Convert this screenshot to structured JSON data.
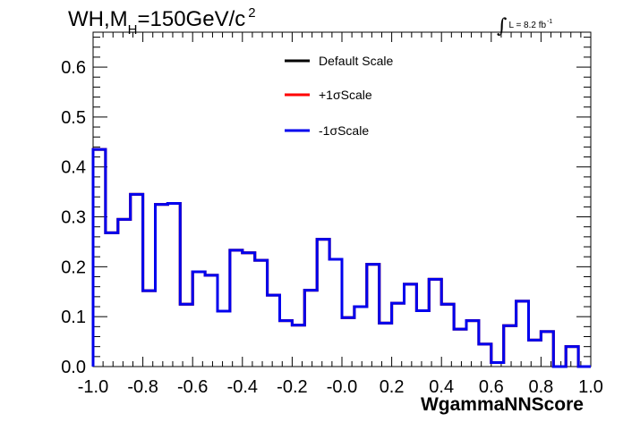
{
  "chart_data": {
    "type": "line",
    "title": {
      "main": "WH,M",
      "subscript": "H",
      "rest": "=150GeV/c",
      "superscript": "2"
    },
    "luminosity": {
      "symbol": "∫",
      "text": "L = 8.2 fb",
      "superscript": "-1"
    },
    "xlabel": "WgammaNNScore",
    "ylabel": "",
    "xlim": [
      -1.0,
      1.0
    ],
    "ylim": [
      0.0,
      0.67
    ],
    "x_ticks": [
      -1.0,
      -0.8,
      -0.6,
      -0.4,
      -0.2,
      0.0,
      0.2,
      0.4,
      0.6,
      0.8,
      1.0
    ],
    "x_tick_labels": [
      "-1.0",
      "-0.8",
      "-0.6",
      "-0.4",
      "-0.2",
      "-0.0",
      "0.2",
      "0.4",
      "0.6",
      "0.8",
      "1.0"
    ],
    "y_ticks": [
      0.0,
      0.1,
      0.2,
      0.3,
      0.4,
      0.5,
      0.6
    ],
    "y_tick_labels": [
      "0.0",
      "0.1",
      "0.2",
      "0.3",
      "0.4",
      "0.5",
      "0.6"
    ],
    "grid": false,
    "legend_placement": "top-center",
    "bin_edges": [
      -1.0,
      -0.95,
      -0.9,
      -0.85,
      -0.8,
      -0.75,
      -0.7,
      -0.65,
      -0.6,
      -0.55,
      -0.5,
      -0.45,
      -0.4,
      -0.35,
      -0.3,
      -0.25,
      -0.2,
      -0.15,
      -0.1,
      -0.05,
      0.0,
      0.05,
      0.1,
      0.15,
      0.2,
      0.25,
      0.3,
      0.35,
      0.4,
      0.45,
      0.5,
      0.55,
      0.6,
      0.65,
      0.7,
      0.75,
      0.8,
      0.85,
      0.9,
      0.95,
      1.0
    ],
    "series": [
      {
        "name": "Default Scale",
        "color": "#000000",
        "values": [
          0.435,
          0.268,
          0.295,
          0.345,
          0.152,
          0.325,
          0.327,
          0.125,
          0.19,
          0.183,
          0.111,
          0.233,
          0.228,
          0.213,
          0.143,
          0.092,
          0.083,
          0.153,
          0.255,
          0.215,
          0.098,
          0.12,
          0.205,
          0.087,
          0.127,
          0.165,
          0.112,
          0.175,
          0.125,
          0.075,
          0.092,
          0.045,
          0.008,
          0.082,
          0.131,
          0.053,
          0.07,
          0.0,
          0.04,
          0.0
        ]
      },
      {
        "name": "+1σScale",
        "color": "#ff0000",
        "values": [
          0.435,
          0.268,
          0.295,
          0.345,
          0.152,
          0.325,
          0.327,
          0.125,
          0.19,
          0.183,
          0.111,
          0.233,
          0.228,
          0.213,
          0.143,
          0.092,
          0.083,
          0.153,
          0.255,
          0.215,
          0.098,
          0.12,
          0.205,
          0.087,
          0.127,
          0.165,
          0.112,
          0.175,
          0.125,
          0.075,
          0.092,
          0.045,
          0.008,
          0.082,
          0.131,
          0.053,
          0.07,
          0.0,
          0.04,
          0.0
        ]
      },
      {
        "name": "-1σScale",
        "color": "#0000ee",
        "values": [
          0.435,
          0.268,
          0.295,
          0.345,
          0.152,
          0.325,
          0.327,
          0.125,
          0.19,
          0.183,
          0.111,
          0.233,
          0.228,
          0.213,
          0.143,
          0.092,
          0.083,
          0.153,
          0.255,
          0.215,
          0.098,
          0.12,
          0.205,
          0.087,
          0.127,
          0.165,
          0.112,
          0.175,
          0.125,
          0.075,
          0.092,
          0.045,
          0.008,
          0.082,
          0.131,
          0.053,
          0.07,
          0.0,
          0.04,
          0.0
        ]
      }
    ]
  }
}
